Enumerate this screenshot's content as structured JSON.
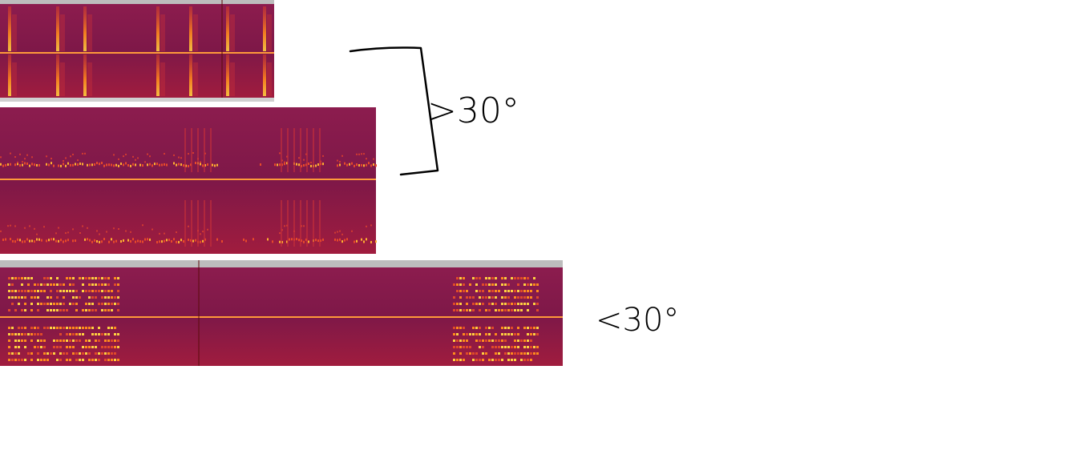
{
  "annotations": {
    "upper": ">30°",
    "lower": "<30°"
  }
}
